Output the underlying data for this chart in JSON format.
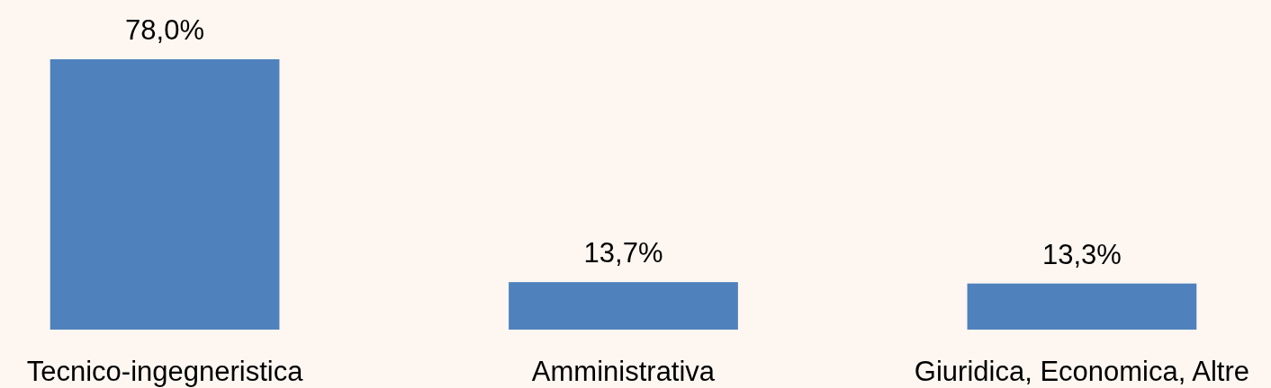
{
  "chart_data": {
    "type": "bar",
    "categories": [
      "Tecnico-ingegneristica",
      "Amministrativa",
      "Giuridica, Economica, Altre"
    ],
    "values": [
      78.0,
      13.7,
      13.3
    ],
    "color": "#4f81bd",
    "value_labels": [
      "78,0%",
      "13,7%",
      "13,3%"
    ],
    "grid": false
  }
}
